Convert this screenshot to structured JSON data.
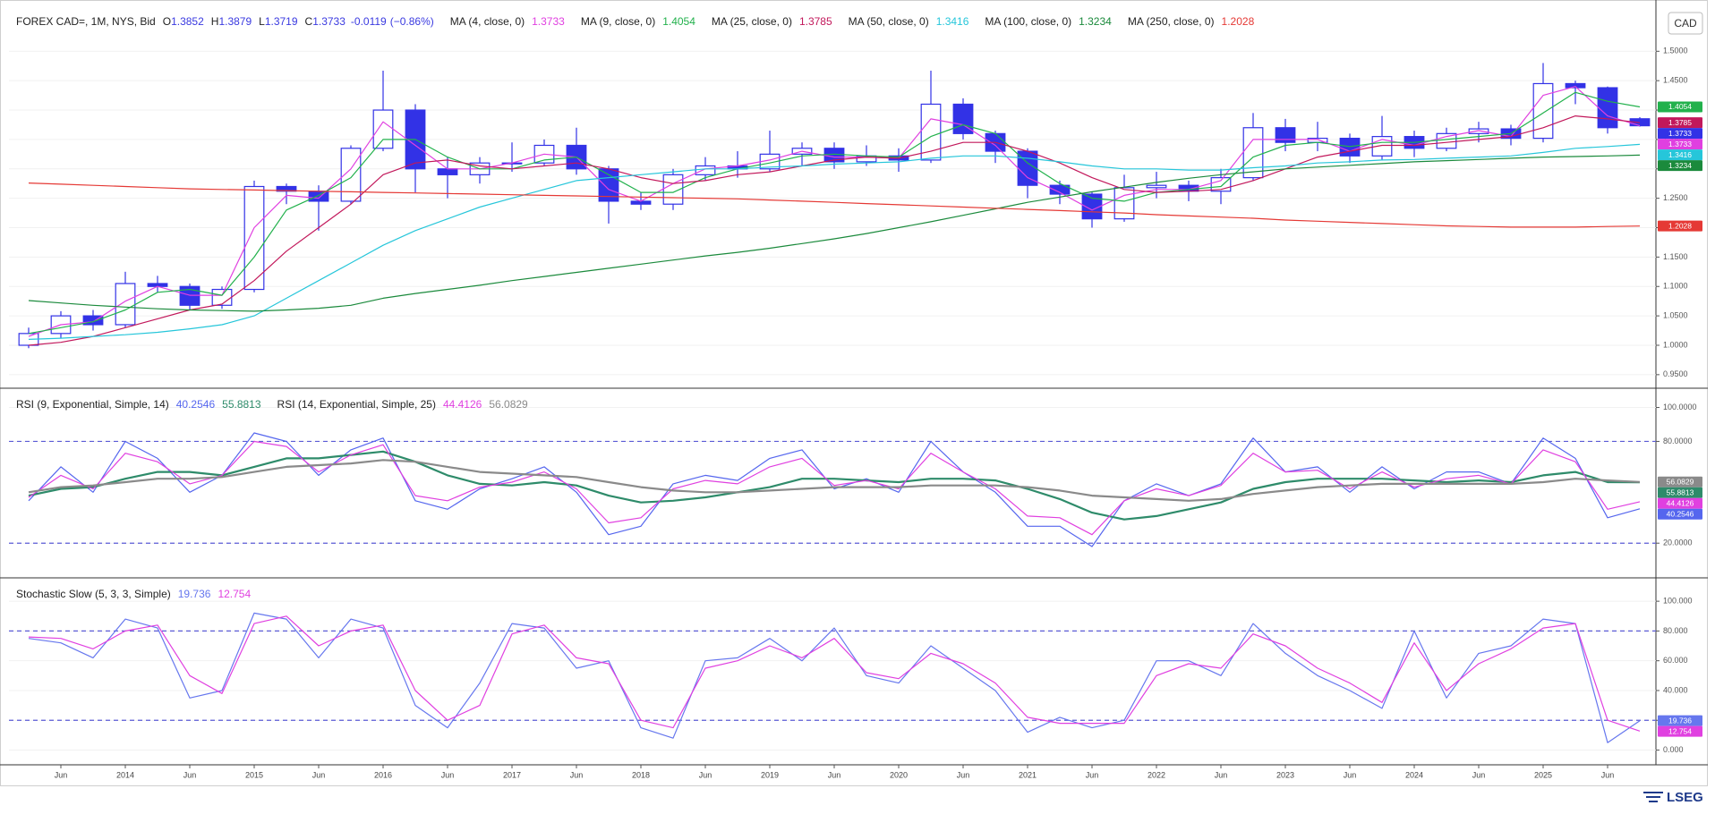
{
  "chart_data": [
    {
      "type": "candlestick",
      "title": "FOREX CAD=, 1M, NYS, Bid",
      "currency": "CAD",
      "ohlc_labels": [
        "O",
        "H",
        "L",
        "C"
      ],
      "change": -0.0119,
      "change_pct": {
        "value": -0.86,
        "label": "(−0.86%)"
      },
      "up_color": "#ffffff",
      "down_color": "#3232e6",
      "open": [
        1.0,
        1.02,
        1.05,
        1.035,
        1.105,
        1.1,
        1.068,
        1.095,
        1.27,
        1.262,
        1.245,
        1.335,
        1.4,
        1.3,
        1.29,
        1.31,
        1.31,
        1.34,
        1.3,
        1.245,
        1.24,
        1.29,
        1.305,
        1.3,
        1.325,
        1.335,
        1.312,
        1.322,
        1.315,
        1.41,
        1.36,
        1.33,
        1.272,
        1.257,
        1.215,
        1.268,
        1.272,
        1.262,
        1.285,
        1.37,
        1.345,
        1.352,
        1.322,
        1.355,
        1.335,
        1.36,
        1.368,
        1.352,
        1.445,
        1.438,
        1.3852
      ],
      "high": [
        1.03,
        1.058,
        1.06,
        1.125,
        1.118,
        1.105,
        1.1,
        1.28,
        1.275,
        1.272,
        1.34,
        1.467,
        1.41,
        1.32,
        1.32,
        1.345,
        1.35,
        1.37,
        1.305,
        1.26,
        1.3,
        1.32,
        1.33,
        1.365,
        1.345,
        1.345,
        1.34,
        1.335,
        1.467,
        1.42,
        1.365,
        1.335,
        1.28,
        1.26,
        1.29,
        1.295,
        1.28,
        1.3,
        1.395,
        1.385,
        1.38,
        1.36,
        1.39,
        1.365,
        1.37,
        1.38,
        1.375,
        1.48,
        1.45,
        1.44,
        1.3879
      ],
      "low": [
        0.995,
        1.012,
        1.025,
        1.03,
        1.09,
        1.06,
        1.062,
        1.09,
        1.24,
        1.195,
        1.24,
        1.33,
        1.26,
        1.25,
        1.275,
        1.295,
        1.305,
        1.29,
        1.207,
        1.23,
        1.23,
        1.28,
        1.285,
        1.295,
        1.305,
        1.3,
        1.305,
        1.295,
        1.31,
        1.35,
        1.31,
        1.25,
        1.24,
        1.2,
        1.21,
        1.25,
        1.245,
        1.24,
        1.28,
        1.33,
        1.33,
        1.31,
        1.315,
        1.32,
        1.33,
        1.345,
        1.34,
        1.345,
        1.41,
        1.36,
        1.3719
      ],
      "close": [
        1.02,
        1.05,
        1.035,
        1.105,
        1.1,
        1.068,
        1.095,
        1.27,
        1.262,
        1.245,
        1.335,
        1.4,
        1.3,
        1.29,
        1.31,
        1.31,
        1.34,
        1.3,
        1.245,
        1.24,
        1.29,
        1.305,
        1.3,
        1.325,
        1.335,
        1.312,
        1.322,
        1.315,
        1.41,
        1.36,
        1.33,
        1.272,
        1.257,
        1.215,
        1.268,
        1.272,
        1.262,
        1.285,
        1.37,
        1.345,
        1.352,
        1.322,
        1.355,
        1.335,
        1.36,
        1.368,
        1.352,
        1.445,
        1.438,
        1.37,
        1.3733
      ],
      "series": [
        {
          "name": "MA (4, close, 0)",
          "color": "#e040e0",
          "values": [
            1.015,
            1.035,
            1.04,
            1.075,
            1.1,
            1.085,
            1.085,
            1.2,
            1.255,
            1.25,
            1.3,
            1.38,
            1.34,
            1.3,
            1.3,
            1.31,
            1.325,
            1.32,
            1.265,
            1.245,
            1.275,
            1.3,
            1.305,
            1.315,
            1.33,
            1.32,
            1.32,
            1.318,
            1.385,
            1.375,
            1.34,
            1.285,
            1.26,
            1.23,
            1.255,
            1.265,
            1.265,
            1.28,
            1.35,
            1.35,
            1.35,
            1.33,
            1.35,
            1.34,
            1.355,
            1.365,
            1.355,
            1.425,
            1.44,
            1.39,
            1.3733
          ]
        },
        {
          "name": "MA (9, close, 0)",
          "color": "#22b14c",
          "values": [
            1.02,
            1.03,
            1.04,
            1.06,
            1.09,
            1.095,
            1.085,
            1.15,
            1.23,
            1.255,
            1.285,
            1.35,
            1.35,
            1.32,
            1.3,
            1.3,
            1.315,
            1.32,
            1.29,
            1.26,
            1.26,
            1.285,
            1.3,
            1.31,
            1.322,
            1.325,
            1.322,
            1.32,
            1.355,
            1.375,
            1.36,
            1.31,
            1.275,
            1.25,
            1.245,
            1.26,
            1.265,
            1.27,
            1.32,
            1.34,
            1.345,
            1.338,
            1.345,
            1.345,
            1.35,
            1.355,
            1.36,
            1.395,
            1.43,
            1.415,
            1.4054
          ]
        },
        {
          "name": "MA (25, close, 0)",
          "color": "#c2185b",
          "values": [
            1.0,
            1.005,
            1.015,
            1.03,
            1.045,
            1.06,
            1.07,
            1.11,
            1.16,
            1.2,
            1.24,
            1.29,
            1.31,
            1.315,
            1.305,
            1.3,
            1.305,
            1.31,
            1.3,
            1.285,
            1.275,
            1.28,
            1.29,
            1.295,
            1.305,
            1.315,
            1.32,
            1.318,
            1.33,
            1.345,
            1.345,
            1.33,
            1.31,
            1.285,
            1.265,
            1.26,
            1.262,
            1.265,
            1.28,
            1.3,
            1.32,
            1.33,
            1.34,
            1.34,
            1.345,
            1.35,
            1.355,
            1.37,
            1.39,
            1.385,
            1.3785
          ]
        },
        {
          "name": "MA (50, close, 0)",
          "color": "#26c6da",
          "values": [
            1.01,
            1.012,
            1.015,
            1.018,
            1.022,
            1.028,
            1.035,
            1.05,
            1.08,
            1.11,
            1.14,
            1.17,
            1.195,
            1.215,
            1.235,
            1.25,
            1.265,
            1.28,
            1.285,
            1.29,
            1.295,
            1.3,
            1.3,
            1.303,
            1.305,
            1.308,
            1.31,
            1.312,
            1.318,
            1.322,
            1.322,
            1.318,
            1.312,
            1.305,
            1.3,
            1.3,
            1.298,
            1.298,
            1.302,
            1.305,
            1.31,
            1.312,
            1.315,
            1.316,
            1.318,
            1.32,
            1.322,
            1.328,
            1.335,
            1.338,
            1.3416
          ]
        },
        {
          "name": "MA (100, close, 0)",
          "color": "#1b8a3c",
          "values": [
            1.076,
            1.072,
            1.068,
            1.065,
            1.062,
            1.06,
            1.059,
            1.058,
            1.06,
            1.063,
            1.068,
            1.08,
            1.088,
            1.095,
            1.102,
            1.11,
            1.117,
            1.124,
            1.131,
            1.138,
            1.145,
            1.152,
            1.158,
            1.165,
            1.173,
            1.181,
            1.19,
            1.2,
            1.21,
            1.221,
            1.232,
            1.243,
            1.252,
            1.261,
            1.269,
            1.277,
            1.284,
            1.29,
            1.295,
            1.3,
            1.303,
            1.306,
            1.309,
            1.312,
            1.314,
            1.316,
            1.318,
            1.32,
            1.321,
            1.322,
            1.3234
          ]
        },
        {
          "name": "MA (250, close, 0)",
          "color": "#e53935",
          "values": [
            1.276,
            1.274,
            1.272,
            1.27,
            1.268,
            1.266,
            1.265,
            1.264,
            1.263,
            1.262,
            1.261,
            1.26,
            1.259,
            1.258,
            1.257,
            1.256,
            1.255,
            1.254,
            1.253,
            1.252,
            1.251,
            1.25,
            1.249,
            1.247,
            1.245,
            1.243,
            1.241,
            1.239,
            1.237,
            1.235,
            1.233,
            1.231,
            1.229,
            1.227,
            1.225,
            1.222,
            1.22,
            1.218,
            1.216,
            1.213,
            1.211,
            1.209,
            1.207,
            1.205,
            1.203,
            1.202,
            1.201,
            1.201,
            1.201,
            1.202,
            1.2028
          ]
        }
      ],
      "ylim": [
        0.93,
        1.575
      ],
      "yticks": [
        {
          "value": 1.5,
          "label": "1.5000"
        },
        {
          "value": 1.45,
          "label": "1.4500"
        },
        {
          "value": 1.4,
          "label": "1.4000"
        },
        {
          "value": 1.35,
          "label": "1.3500"
        },
        {
          "value": 1.3,
          "label": "1.3000"
        },
        {
          "value": 1.25,
          "label": "1.2500"
        },
        {
          "value": 1.2,
          "label": "1.2000"
        },
        {
          "value": 1.15,
          "label": "1.1500"
        },
        {
          "value": 1.1,
          "label": "1.1000"
        },
        {
          "value": 1.05,
          "label": "1.0500"
        },
        {
          "value": 1.0,
          "label": "1.0000"
        },
        {
          "value": 0.95,
          "label": "0.9500"
        }
      ],
      "grid": true
    },
    {
      "type": "line",
      "series": [
        {
          "name": "RSI (9, Exponential, Simple, 14)",
          "color": "#5566ee",
          "values": [
            45,
            65,
            50,
            80,
            70,
            50,
            60,
            85,
            80,
            60,
            75,
            82,
            45,
            40,
            52,
            58,
            65,
            50,
            25,
            30,
            55,
            60,
            57,
            70,
            75,
            52,
            58,
            50,
            80,
            62,
            50,
            30,
            30,
            18,
            45,
            55,
            48,
            55,
            82,
            62,
            65,
            50,
            65,
            52,
            62,
            62,
            55,
            82,
            70,
            35,
            40.2546
          ]
        },
        {
          "color": "#2e8b6a",
          "width": 2.2,
          "values": [
            48,
            52,
            53,
            58,
            62,
            62,
            60,
            65,
            70,
            70,
            72,
            74,
            68,
            60,
            55,
            54,
            56,
            54,
            48,
            44,
            45,
            47,
            50,
            53,
            58,
            58,
            57,
            56,
            58,
            58,
            57,
            52,
            46,
            38,
            34,
            36,
            40,
            44,
            52,
            56,
            58,
            58,
            58,
            57,
            56,
            57,
            56,
            60,
            62,
            56,
            55.8813
          ]
        },
        {
          "name": "RSI (14, Exponential, Simple, 25)",
          "color": "#e040e0",
          "values": [
            47,
            60,
            52,
            73,
            68,
            55,
            60,
            80,
            77,
            62,
            72,
            78,
            48,
            45,
            53,
            56,
            62,
            52,
            32,
            35,
            52,
            57,
            55,
            65,
            70,
            54,
            57,
            52,
            73,
            62,
            52,
            36,
            35,
            25,
            45,
            52,
            48,
            54,
            73,
            62,
            63,
            52,
            62,
            53,
            58,
            60,
            55,
            75,
            68,
            40,
            44.4126
          ]
        },
        {
          "color": "#8a8a8a",
          "width": 2.2,
          "values": [
            50,
            53,
            54,
            56,
            58,
            58,
            59,
            62,
            65,
            66,
            67,
            69,
            68,
            65,
            62,
            61,
            60,
            59,
            56,
            53,
            51,
            50,
            50,
            51,
            52,
            53,
            53,
            53,
            54,
            54,
            54,
            53,
            51,
            48,
            47,
            46,
            45,
            46,
            49,
            51,
            53,
            54,
            55,
            55,
            55,
            55,
            55,
            56,
            58,
            57,
            56.0829
          ]
        }
      ],
      "ylim": [
        0.6,
        110.3
      ],
      "yticks": [
        {
          "value": 100,
          "label": "100.0000"
        },
        {
          "value": 80,
          "label": "80.0000"
        },
        {
          "value": 20,
          "label": "20.0000"
        }
      ],
      "bands": [
        80,
        20
      ],
      "band_color": "#5b5bd6",
      "grid": true
    },
    {
      "type": "line",
      "categories": [
        null,
        "Jun",
        null,
        "2014",
        null,
        "Jun",
        null,
        "2015",
        null,
        "Jun",
        null,
        "2016",
        null,
        "Jun",
        null,
        "2017",
        null,
        "Jun",
        null,
        "2018",
        null,
        "Jun",
        null,
        "2019",
        null,
        "Jun",
        null,
        "2020",
        null,
        "Jun",
        null,
        "2021",
        null,
        "Jun",
        null,
        "2022",
        null,
        "Jun",
        null,
        "2023",
        null,
        "Jun",
        null,
        "2024",
        null,
        "Jun",
        null,
        "2025",
        null,
        "Jun",
        null
      ],
      "series": [
        {
          "name": "Stochastic Slow (5, 3, 3, Simple)",
          "color": "#6677ee",
          "values": [
            75,
            72,
            62,
            88,
            82,
            35,
            40,
            92,
            88,
            62,
            88,
            82,
            30,
            15,
            45,
            85,
            82,
            55,
            60,
            15,
            8,
            60,
            62,
            75,
            60,
            82,
            50,
            45,
            70,
            55,
            40,
            12,
            22,
            15,
            20,
            60,
            60,
            50,
            85,
            65,
            50,
            40,
            28,
            80,
            35,
            65,
            70,
            88,
            85,
            5,
            19.736
          ]
        },
        {
          "color": "#e040e0",
          "values": [
            76,
            75,
            68,
            80,
            84,
            50,
            38,
            85,
            90,
            70,
            80,
            84,
            40,
            20,
            30,
            78,
            84,
            62,
            58,
            20,
            15,
            55,
            60,
            70,
            62,
            75,
            52,
            48,
            65,
            58,
            45,
            22,
            18,
            18,
            18,
            50,
            58,
            55,
            78,
            70,
            55,
            45,
            32,
            72,
            40,
            58,
            68,
            82,
            85,
            20,
            12.754
          ]
        }
      ],
      "ylim": [
        -8.7,
        114.5
      ],
      "yticks": [
        {
          "value": 100,
          "label": "100.000"
        },
        {
          "value": 80,
          "label": "80.000"
        },
        {
          "value": 60,
          "label": "60.000"
        },
        {
          "value": 40,
          "label": "40.000"
        },
        {
          "value": 20,
          "label": "20.000"
        },
        {
          "value": 0,
          "label": "0.000"
        }
      ],
      "bands": [
        80,
        20
      ],
      "band_color": "#5b5bd6",
      "grid": true
    }
  ],
  "brand": "LSEG"
}
